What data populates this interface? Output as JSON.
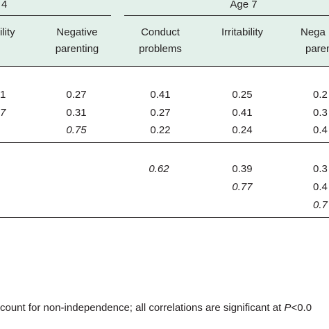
{
  "header": {
    "age4_group": "4",
    "age7_group": "Age 7",
    "columns": [
      {
        "key": "a4_irr",
        "lines": [
          "ility",
          ""
        ]
      },
      {
        "key": "a4_neg",
        "lines": [
          "Negative",
          "parenting"
        ]
      },
      {
        "key": "a7_cp",
        "lines": [
          "Conduct",
          "problems"
        ]
      },
      {
        "key": "a7_irr",
        "lines": [
          "Irritability",
          ""
        ]
      },
      {
        "key": "a7_neg",
        "lines": [
          "Nega",
          "parent"
        ]
      }
    ]
  },
  "rows": [
    {
      "cells": [
        "1",
        "0.27",
        "0.41",
        "0.25",
        "0.2"
      ]
    },
    {
      "cells": [
        "7",
        "0.31",
        "0.27",
        "0.41",
        "0.3"
      ]
    },
    {
      "cells": [
        "",
        "0.75",
        "0.22",
        "0.24",
        "0.4"
      ]
    },
    {
      "cells": [
        "",
        "",
        "0.62",
        "0.39",
        "0.3"
      ]
    },
    {
      "cells": [
        "",
        "",
        "",
        "0.77",
        "0.4"
      ]
    },
    {
      "cells": [
        "",
        "",
        "",
        "",
        "0.7"
      ]
    }
  ],
  "footnote": "count for non-independence; all correlations are significant at P<0.0"
}
